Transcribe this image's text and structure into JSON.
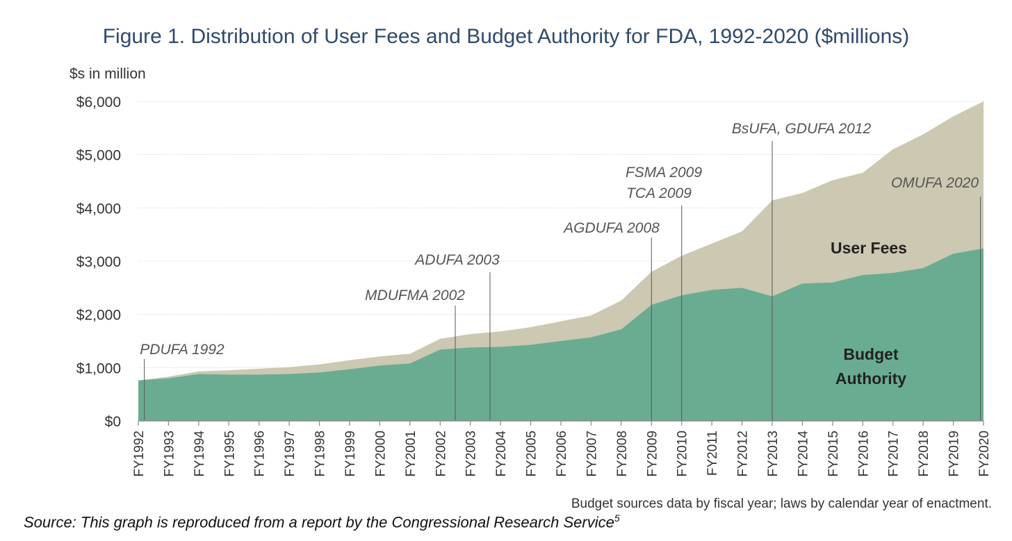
{
  "chart_data": {
    "type": "area",
    "title": "Figure 1. Distribution of User Fees and Budget Authority for FDA, 1992-2020 ($millions)",
    "ylabel": "$s in million",
    "ylim": [
      0,
      6000
    ],
    "yticks": [
      0,
      1000,
      2000,
      3000,
      4000,
      5000,
      6000
    ],
    "ytick_labels": [
      "$0",
      "$1,000",
      "$2,000",
      "$3,000",
      "$4,000",
      "$5,000",
      "$6,000"
    ],
    "grid": true,
    "categories": [
      "FY1992",
      "FY1993",
      "FY1994",
      "FY1995",
      "FY1996",
      "FY1997",
      "FY1998",
      "FY1999",
      "FY2000",
      "FY2001",
      "FY2002",
      "FY2003",
      "FY2004",
      "FY2005",
      "FY2006",
      "FY2007",
      "FY2008",
      "FY2009",
      "FY2010",
      "FY2011",
      "FY2012",
      "FY2013",
      "FY2014",
      "FY2015",
      "FY2016",
      "FY2017",
      "FY2018",
      "FY2019",
      "FY2020"
    ],
    "series": [
      {
        "name": "Budget Authority",
        "color": "#6aac92",
        "values": [
          760,
          800,
          880,
          870,
          870,
          880,
          910,
          970,
          1040,
          1080,
          1340,
          1380,
          1390,
          1430,
          1500,
          1570,
          1720,
          2180,
          2360,
          2460,
          2500,
          2340,
          2580,
          2600,
          2740,
          2780,
          2870,
          3140,
          3240
        ]
      },
      {
        "name": "User Fees",
        "color": "#ccc8b1",
        "values": [
          0,
          30,
          50,
          80,
          110,
          130,
          150,
          170,
          170,
          180,
          200,
          250,
          290,
          330,
          370,
          410,
          540,
          620,
          740,
          870,
          1060,
          1800,
          1700,
          1920,
          1920,
          2320,
          2510,
          2580,
          2760
        ]
      }
    ],
    "series_labels": [
      {
        "series": "Budget Authority",
        "lines": [
          "Budget",
          "Authority"
        ]
      },
      {
        "series": "User Fees",
        "lines": [
          "User Fees"
        ]
      }
    ],
    "annotations": [
      {
        "label": "PDUFA 1992",
        "x": 1992.2
      },
      {
        "label": "MDUFMA 2002",
        "x": 2002.5
      },
      {
        "label": "ADUFA 2003",
        "x": 2003.65
      },
      {
        "label": "AGDUFA 2008",
        "x": 2009.0
      },
      {
        "label": "FSMA 2009",
        "x": 2010.0
      },
      {
        "label": "TCA 2009",
        "x": 2010.0
      },
      {
        "label": "BsUFA, GDUFA 2012",
        "x": 2013.0
      },
      {
        "label": "OMUFA 2020",
        "x": 2019.9
      }
    ],
    "note": "Budget sources data by fiscal year; laws by calendar year of enactment."
  },
  "source": "Source: This graph is reproduced from a report by the Congressional Research Service",
  "source_ref": "5"
}
